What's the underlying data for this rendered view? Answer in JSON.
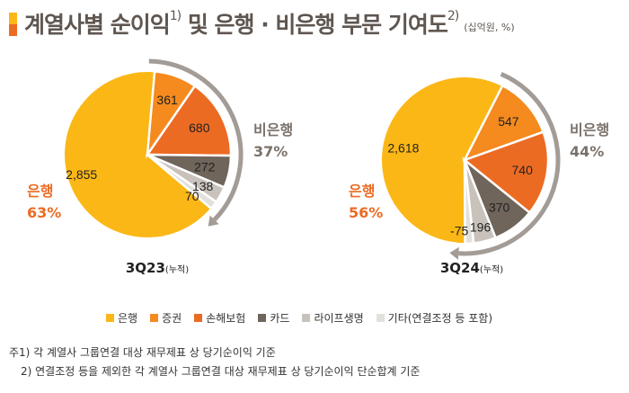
{
  "title": {
    "text": "계열사별 순이익",
    "sup1": "1)",
    "text2": "및 은행 · 비은행 부문 기여도",
    "sup2": "2)",
    "unit": "(십억원, %)"
  },
  "colors": {
    "은행": "#FBB715",
    "증권": "#F58A1F",
    "손해보험": "#EC6B23",
    "카드": "#6F655B",
    "라이프생명": "#C8C2BB",
    "기타": "#E3E1DE",
    "arrow": "#A39C96",
    "bank_text": "#EC6B23",
    "nonbank_text": "#7A716A"
  },
  "legend": [
    "은행",
    "증권",
    "손해보험",
    "카드",
    "라이프생명",
    "기타(연결조정 등 포함)"
  ],
  "chart_data": [
    {
      "type": "pie",
      "label": "3Q23",
      "label_sub": "(누적)",
      "categories": [
        "은행",
        "증권",
        "손해보험",
        "카드",
        "라이프생명",
        "기타"
      ],
      "values": [
        2855,
        361,
        680,
        272,
        138,
        70
      ],
      "value_labels": [
        "2,855",
        "361",
        "680",
        "272",
        "138",
        "70"
      ],
      "bank": {
        "label": "은행",
        "pct": "63%"
      },
      "nonbank": {
        "label": "비은행",
        "pct": "37%"
      }
    },
    {
      "type": "pie",
      "label": "3Q24",
      "label_sub": "(누적)",
      "categories": [
        "은행",
        "증권",
        "손해보험",
        "카드",
        "라이프생명",
        "기타"
      ],
      "values": [
        2618,
        547,
        740,
        370,
        196,
        -75
      ],
      "value_labels": [
        "2,618",
        "547",
        "740",
        "370",
        "196",
        "-75"
      ],
      "bank": {
        "label": "은행",
        "pct": "56%"
      },
      "nonbank": {
        "label": "비은행",
        "pct": "44%"
      }
    }
  ],
  "notes": [
    "주1) 각 계열사 그룹연결 대상 재무제표 상 당기순이익 기준",
    "2) 연결조정 등을 제외한 각 계열사 그룹연결 대상 재무제표 상 당기순이익 단순합계 기준"
  ]
}
